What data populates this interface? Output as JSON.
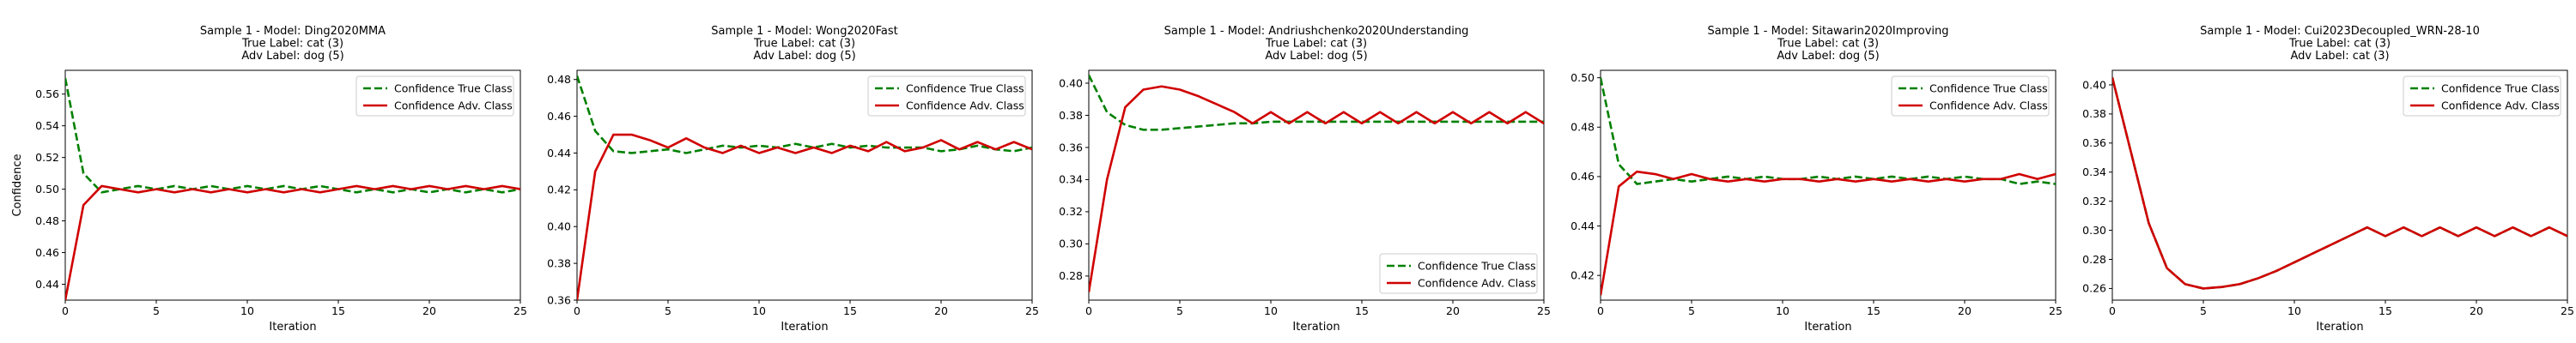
{
  "figure": {
    "legend_true": "Confidence True Class",
    "legend_adv": "Confidence Adv. Class",
    "color_true": "#008000",
    "color_adv": "#d00000"
  },
  "chart_data": [
    {
      "type": "line",
      "title_lines": [
        "Sample 1 - Model: Ding2020MMA",
        "True Label: cat (3)",
        "Adv Label: dog (5)"
      ],
      "xlabel": "Iteration",
      "ylabel": "Confidence",
      "xlim": [
        0,
        25
      ],
      "ylim": [
        0.43,
        0.575
      ],
      "xticks": [
        0,
        5,
        10,
        15,
        20,
        25
      ],
      "yticks": [
        0.44,
        0.46,
        0.48,
        0.5,
        0.52,
        0.54,
        0.56
      ],
      "legend_position": "upper right",
      "series": [
        {
          "name": "Confidence True Class",
          "style": "dashed",
          "color": "#008000",
          "x": [
            0,
            1,
            2,
            3,
            4,
            5,
            6,
            7,
            8,
            9,
            10,
            11,
            12,
            13,
            14,
            15,
            16,
            17,
            18,
            19,
            20,
            21,
            22,
            23,
            24,
            25
          ],
          "y": [
            0.57,
            0.51,
            0.498,
            0.5,
            0.502,
            0.5,
            0.502,
            0.5,
            0.502,
            0.5,
            0.502,
            0.5,
            0.502,
            0.5,
            0.502,
            0.5,
            0.498,
            0.5,
            0.498,
            0.5,
            0.498,
            0.5,
            0.498,
            0.5,
            0.498,
            0.5
          ]
        },
        {
          "name": "Confidence Adv. Class",
          "style": "solid",
          "color": "#d00000",
          "x": [
            0,
            1,
            2,
            3,
            4,
            5,
            6,
            7,
            8,
            9,
            10,
            11,
            12,
            13,
            14,
            15,
            16,
            17,
            18,
            19,
            20,
            21,
            22,
            23,
            24,
            25
          ],
          "y": [
            0.43,
            0.49,
            0.502,
            0.5,
            0.498,
            0.5,
            0.498,
            0.5,
            0.498,
            0.5,
            0.498,
            0.5,
            0.498,
            0.5,
            0.498,
            0.5,
            0.502,
            0.5,
            0.502,
            0.5,
            0.502,
            0.5,
            0.502,
            0.5,
            0.502,
            0.5
          ]
        }
      ]
    },
    {
      "type": "line",
      "title_lines": [
        "Sample 1 - Model: Wong2020Fast",
        "True Label: cat (3)",
        "Adv Label: dog (5)"
      ],
      "xlabel": "Iteration",
      "ylabel": "",
      "xlim": [
        0,
        25
      ],
      "ylim": [
        0.36,
        0.485
      ],
      "xticks": [
        0,
        5,
        10,
        15,
        20,
        25
      ],
      "yticks": [
        0.36,
        0.38,
        0.4,
        0.42,
        0.44,
        0.46,
        0.48
      ],
      "legend_position": "upper right",
      "series": [
        {
          "name": "Confidence True Class",
          "style": "dashed",
          "color": "#008000",
          "x": [
            0,
            1,
            2,
            3,
            4,
            5,
            6,
            7,
            8,
            9,
            10,
            11,
            12,
            13,
            14,
            15,
            16,
            17,
            18,
            19,
            20,
            21,
            22,
            23,
            24,
            25
          ],
          "y": [
            0.482,
            0.452,
            0.441,
            0.44,
            0.441,
            0.442,
            0.44,
            0.442,
            0.444,
            0.443,
            0.444,
            0.443,
            0.445,
            0.443,
            0.445,
            0.443,
            0.444,
            0.443,
            0.443,
            0.443,
            0.441,
            0.442,
            0.444,
            0.442,
            0.441,
            0.443
          ]
        },
        {
          "name": "Confidence Adv. Class",
          "style": "solid",
          "color": "#d00000",
          "x": [
            0,
            1,
            2,
            3,
            4,
            5,
            6,
            7,
            8,
            9,
            10,
            11,
            12,
            13,
            14,
            15,
            16,
            17,
            18,
            19,
            20,
            21,
            22,
            23,
            24,
            25
          ],
          "y": [
            0.36,
            0.43,
            0.45,
            0.45,
            0.447,
            0.443,
            0.448,
            0.443,
            0.44,
            0.444,
            0.44,
            0.443,
            0.44,
            0.443,
            0.44,
            0.444,
            0.441,
            0.446,
            0.441,
            0.443,
            0.447,
            0.442,
            0.446,
            0.442,
            0.446,
            0.442
          ]
        }
      ]
    },
    {
      "type": "line",
      "title_lines": [
        "Sample 1 - Model: Andriushchenko2020Understanding",
        "True Label: cat (3)",
        "Adv Label: dog (5)"
      ],
      "xlabel": "Iteration",
      "ylabel": "",
      "xlim": [
        0,
        25
      ],
      "ylim": [
        0.265,
        0.408
      ],
      "xticks": [
        0,
        5,
        10,
        15,
        20,
        25
      ],
      "yticks": [
        0.28,
        0.3,
        0.32,
        0.34,
        0.36,
        0.38,
        0.4
      ],
      "legend_position": "lower right",
      "series": [
        {
          "name": "Confidence True Class",
          "style": "dashed",
          "color": "#008000",
          "x": [
            0,
            1,
            2,
            3,
            4,
            5,
            6,
            7,
            8,
            9,
            10,
            11,
            12,
            13,
            14,
            15,
            16,
            17,
            18,
            19,
            20,
            21,
            22,
            23,
            24,
            25
          ],
          "y": [
            0.405,
            0.382,
            0.374,
            0.371,
            0.371,
            0.372,
            0.373,
            0.374,
            0.375,
            0.375,
            0.376,
            0.376,
            0.376,
            0.376,
            0.376,
            0.376,
            0.376,
            0.376,
            0.376,
            0.376,
            0.376,
            0.376,
            0.376,
            0.376,
            0.376,
            0.376
          ]
        },
        {
          "name": "Confidence Adv. Class",
          "style": "solid",
          "color": "#d00000",
          "x": [
            0,
            1,
            2,
            3,
            4,
            5,
            6,
            7,
            8,
            9,
            10,
            11,
            12,
            13,
            14,
            15,
            16,
            17,
            18,
            19,
            20,
            21,
            22,
            23,
            24,
            25
          ],
          "y": [
            0.27,
            0.34,
            0.385,
            0.396,
            0.398,
            0.396,
            0.392,
            0.387,
            0.382,
            0.375,
            0.382,
            0.375,
            0.382,
            0.375,
            0.382,
            0.375,
            0.382,
            0.375,
            0.382,
            0.375,
            0.382,
            0.375,
            0.382,
            0.375,
            0.382,
            0.375
          ]
        }
      ]
    },
    {
      "type": "line",
      "title_lines": [
        "Sample 1 - Model: Sitawarin2020Improving",
        "True Label: cat (3)",
        "Adv Label: dog (5)"
      ],
      "xlabel": "Iteration",
      "ylabel": "",
      "xlim": [
        0,
        25
      ],
      "ylim": [
        0.41,
        0.503
      ],
      "xticks": [
        0,
        5,
        10,
        15,
        20,
        25
      ],
      "yticks": [
        0.42,
        0.44,
        0.46,
        0.48,
        0.5
      ],
      "legend_position": "upper right",
      "series": [
        {
          "name": "Confidence True Class",
          "style": "dashed",
          "color": "#008000",
          "x": [
            0,
            1,
            2,
            3,
            4,
            5,
            6,
            7,
            8,
            9,
            10,
            11,
            12,
            13,
            14,
            15,
            16,
            17,
            18,
            19,
            20,
            21,
            22,
            23,
            24,
            25
          ],
          "y": [
            0.5,
            0.465,
            0.457,
            0.458,
            0.459,
            0.458,
            0.459,
            0.46,
            0.459,
            0.46,
            0.459,
            0.459,
            0.46,
            0.459,
            0.46,
            0.459,
            0.46,
            0.459,
            0.46,
            0.459,
            0.46,
            0.459,
            0.459,
            0.457,
            0.458,
            0.457
          ]
        },
        {
          "name": "Confidence Adv. Class",
          "style": "solid",
          "color": "#d00000",
          "x": [
            0,
            1,
            2,
            3,
            4,
            5,
            6,
            7,
            8,
            9,
            10,
            11,
            12,
            13,
            14,
            15,
            16,
            17,
            18,
            19,
            20,
            21,
            22,
            23,
            24,
            25
          ],
          "y": [
            0.412,
            0.456,
            0.462,
            0.461,
            0.459,
            0.461,
            0.459,
            0.458,
            0.459,
            0.458,
            0.459,
            0.459,
            0.458,
            0.459,
            0.458,
            0.459,
            0.458,
            0.459,
            0.458,
            0.459,
            0.458,
            0.459,
            0.459,
            0.461,
            0.459,
            0.461
          ]
        }
      ]
    },
    {
      "type": "line",
      "title_lines": [
        "Sample 1 - Model: Cui2023Decoupled_WRN-28-10",
        "True Label: cat (3)",
        "Adv Label: cat (3)"
      ],
      "xlabel": "Iteration",
      "ylabel": "",
      "xlim": [
        0,
        25
      ],
      "ylim": [
        0.252,
        0.41
      ],
      "xticks": [
        0,
        5,
        10,
        15,
        20,
        25
      ],
      "yticks": [
        0.26,
        0.28,
        0.3,
        0.32,
        0.34,
        0.36,
        0.38,
        0.4
      ],
      "legend_position": "upper right",
      "series": [
        {
          "name": "Confidence True Class",
          "style": "dashed",
          "color": "#008000",
          "x": [
            0,
            1,
            2,
            3,
            4,
            5,
            6,
            7,
            8,
            9,
            10,
            11,
            12,
            13,
            14,
            15,
            16,
            17,
            18,
            19,
            20,
            21,
            22,
            23,
            24,
            25
          ],
          "y": [
            0.405,
            0.355,
            0.305,
            0.274,
            0.263,
            0.26,
            0.261,
            0.263,
            0.267,
            0.272,
            0.278,
            0.284,
            0.29,
            0.296,
            0.302,
            0.296,
            0.302,
            0.296,
            0.302,
            0.296,
            0.302,
            0.296,
            0.302,
            0.296,
            0.302,
            0.296
          ]
        },
        {
          "name": "Confidence Adv. Class",
          "style": "solid",
          "color": "#d00000",
          "x": [
            0,
            1,
            2,
            3,
            4,
            5,
            6,
            7,
            8,
            9,
            10,
            11,
            12,
            13,
            14,
            15,
            16,
            17,
            18,
            19,
            20,
            21,
            22,
            23,
            24,
            25
          ],
          "y": [
            0.405,
            0.355,
            0.305,
            0.274,
            0.263,
            0.26,
            0.261,
            0.263,
            0.267,
            0.272,
            0.278,
            0.284,
            0.29,
            0.296,
            0.302,
            0.296,
            0.302,
            0.296,
            0.302,
            0.296,
            0.302,
            0.296,
            0.302,
            0.296,
            0.302,
            0.296
          ]
        }
      ]
    }
  ]
}
